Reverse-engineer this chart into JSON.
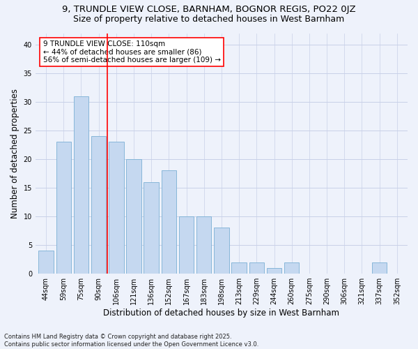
{
  "title1": "9, TRUNDLE VIEW CLOSE, BARNHAM, BOGNOR REGIS, PO22 0JZ",
  "title2": "Size of property relative to detached houses in West Barnham",
  "xlabel": "Distribution of detached houses by size in West Barnham",
  "ylabel": "Number of detached properties",
  "categories": [
    "44sqm",
    "59sqm",
    "75sqm",
    "90sqm",
    "106sqm",
    "121sqm",
    "136sqm",
    "152sqm",
    "167sqm",
    "183sqm",
    "198sqm",
    "213sqm",
    "229sqm",
    "244sqm",
    "260sqm",
    "275sqm",
    "290sqm",
    "306sqm",
    "321sqm",
    "337sqm",
    "352sqm"
  ],
  "values": [
    4,
    23,
    31,
    24,
    23,
    20,
    16,
    18,
    10,
    10,
    8,
    2,
    2,
    1,
    2,
    0,
    0,
    0,
    0,
    2,
    0
  ],
  "bar_color": "#c5d8f0",
  "bar_edge_color": "#7aafd4",
  "vline_x_index": 4,
  "vline_color": "red",
  "annotation_line1": "9 TRUNDLE VIEW CLOSE: 110sqm",
  "annotation_line2": "← 44% of detached houses are smaller (86)",
  "annotation_line3": "56% of semi-detached houses are larger (109) →",
  "annotation_box_color": "white",
  "annotation_box_edge": "red",
  "ylim": [
    0,
    42
  ],
  "yticks": [
    0,
    5,
    10,
    15,
    20,
    25,
    30,
    35,
    40
  ],
  "footer": "Contains HM Land Registry data © Crown copyright and database right 2025.\nContains public sector information licensed under the Open Government Licence v3.0.",
  "bg_color": "#eef2fb",
  "grid_color": "#c8d0e8",
  "title1_fontsize": 9.5,
  "title2_fontsize": 9,
  "ylabel_fontsize": 8.5,
  "xlabel_fontsize": 8.5,
  "tick_fontsize": 7,
  "annot_fontsize": 7.5,
  "footer_fontsize": 6
}
